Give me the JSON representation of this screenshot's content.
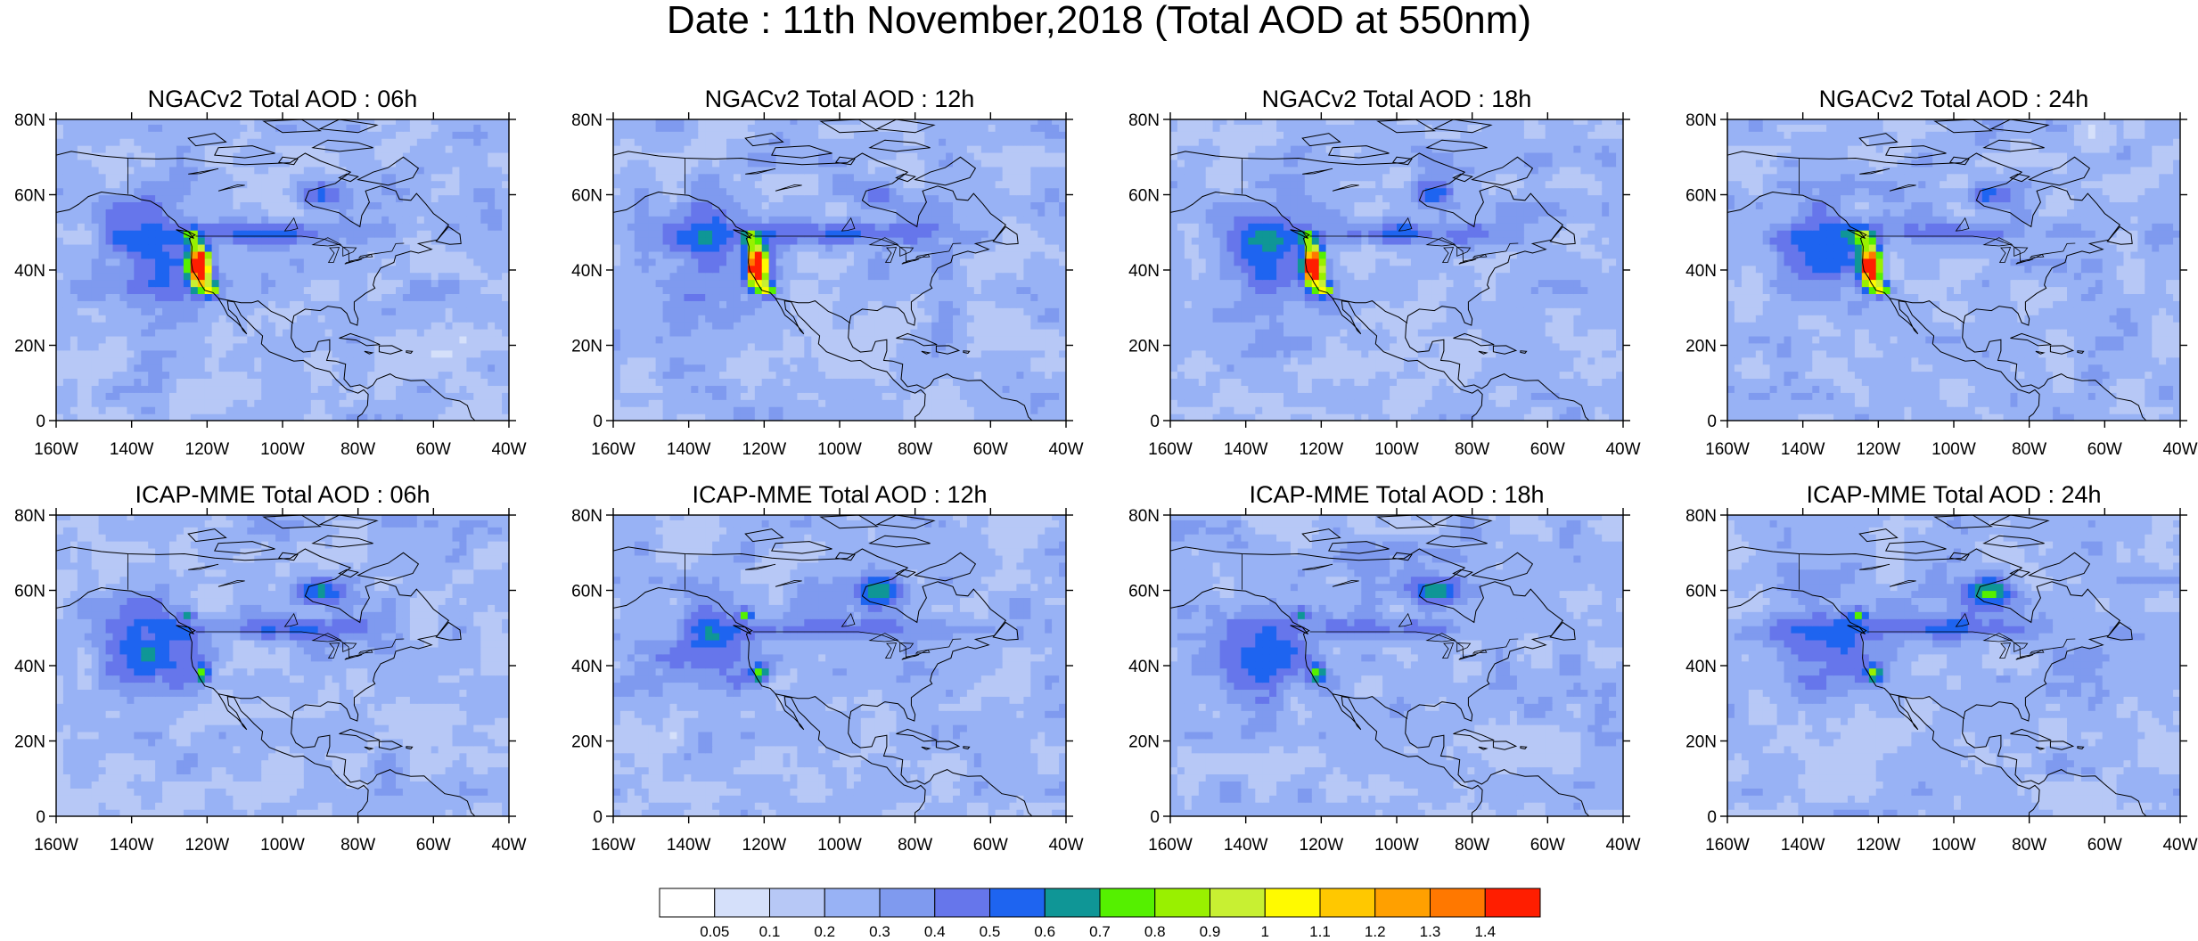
{
  "title": "Date : 11th November,2018 (Total AOD at 550nm)",
  "panels": [
    {
      "title": "NGACv2 Total AOD : 06h",
      "hotspot": "strong"
    },
    {
      "title": "NGACv2 Total AOD : 12h",
      "hotspot": "strong"
    },
    {
      "title": "NGACv2 Total AOD : 18h",
      "hotspot": "strong"
    },
    {
      "title": "NGACv2 Total AOD : 24h",
      "hotspot": "strong"
    },
    {
      "title": "ICAP-MME Total AOD : 06h",
      "hotspot": "weak"
    },
    {
      "title": "ICAP-MME Total AOD : 12h",
      "hotspot": "weak"
    },
    {
      "title": "ICAP-MME Total AOD : 18h",
      "hotspot": "weak"
    },
    {
      "title": "ICAP-MME Total AOD : 24h",
      "hotspot": "weak"
    }
  ],
  "lat_ticks": [
    "80N",
    "60N",
    "40N",
    "20N",
    "0"
  ],
  "lon_ticks": [
    "160W",
    "140W",
    "120W",
    "100W",
    "80W",
    "60W",
    "40W"
  ],
  "colorbar": {
    "colors": [
      "#ffffff",
      "#d5e0fa",
      "#b7c8f6",
      "#98b2f5",
      "#7f9aef",
      "#6676eb",
      "#1e64f0",
      "#0f9696",
      "#55f000",
      "#99f000",
      "#c8f032",
      "#fffa00",
      "#ffc800",
      "#ffa000",
      "#ff7800",
      "#ff1e00"
    ],
    "labels": [
      "0.05",
      "0.1",
      "0.2",
      "0.3",
      "0.4",
      "0.5",
      "0.6",
      "0.7",
      "0.8",
      "0.9",
      "1",
      "1.1",
      "1.2",
      "1.3",
      "1.4"
    ]
  }
}
